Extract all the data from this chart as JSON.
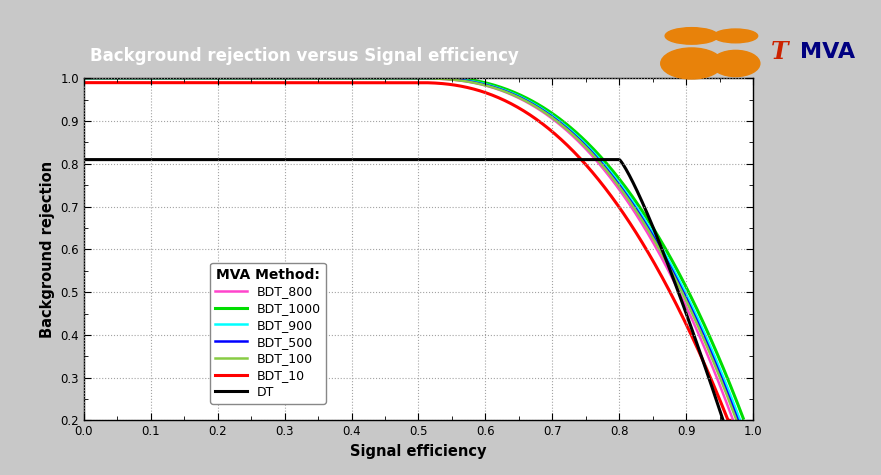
{
  "title": "Background rejection versus Signal efficiency",
  "xlabel": "Signal efficiency",
  "ylabel": "Background rejection",
  "xlim": [
    0,
    1
  ],
  "ylim": [
    0.2,
    1.0
  ],
  "xticks": [
    0,
    0.1,
    0.2,
    0.3,
    0.4,
    0.5,
    0.6,
    0.7,
    0.8,
    0.9,
    1
  ],
  "yticks": [
    0.2,
    0.3,
    0.4,
    0.5,
    0.6,
    0.7,
    0.8,
    0.9,
    1.0
  ],
  "outer_bg_color": "#c8c8c8",
  "plot_bg_color": "#ffffff",
  "title_bg_color": "#6e6e8e",
  "title_text_color": "#ffffff",
  "legend_title": "MVA Method:",
  "curves": [
    {
      "label": "BDT_800",
      "color": "#ff44cc",
      "lw": 1.8,
      "curve_type": "bdt_high",
      "p1": 0.5,
      "p2": 0.97,
      "alpha": 2.5,
      "shift": 0.0
    },
    {
      "label": "BDT_1000",
      "color": "#00dd00",
      "lw": 2.2,
      "curve_type": "bdt_high",
      "p1": 0.5,
      "p2": 0.985,
      "alpha": 2.5,
      "shift": 0.005
    },
    {
      "label": "BDT_900",
      "color": "#00ffff",
      "lw": 1.8,
      "curve_type": "bdt_high",
      "p1": 0.5,
      "p2": 0.98,
      "alpha": 2.5,
      "shift": 0.002
    },
    {
      "label": "BDT_500",
      "color": "#0000ff",
      "lw": 1.8,
      "curve_type": "bdt_high",
      "p1": 0.5,
      "p2": 0.977,
      "alpha": 2.5,
      "shift": 0.001
    },
    {
      "label": "BDT_100",
      "color": "#88cc44",
      "lw": 1.8,
      "curve_type": "bdt_high",
      "p1": 0.5,
      "p2": 0.975,
      "alpha": 2.5,
      "shift": 0.0
    },
    {
      "label": "BDT_10",
      "color": "#ff0000",
      "lw": 2.2,
      "curve_type": "bdt_10",
      "p1": 0.5,
      "p2": 0.965,
      "alpha": 2.3,
      "shift": -0.01
    },
    {
      "label": "DT",
      "color": "#000000",
      "lw": 2.2,
      "curve_type": "dt",
      "p1": 0.8,
      "p2": 0.955,
      "alpha": 1.2,
      "shift": 0.0
    }
  ]
}
